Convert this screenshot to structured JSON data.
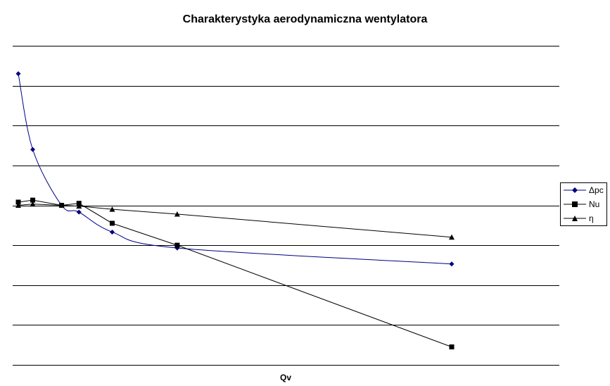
{
  "chart_data": {
    "type": "line",
    "title": "Charakterystyka aerodynamiczna wentylatora",
    "xlabel": "Qv",
    "ylabel": "",
    "ylim": [
      0,
      8
    ],
    "grid": true,
    "legend_position": "right",
    "x": [
      1,
      2,
      4,
      5.2,
      7.5,
      12,
      31
    ],
    "series": [
      {
        "name": "Δpc",
        "color": "#000080",
        "marker": "diamond",
        "smooth": true,
        "values": [
          7.3,
          5.4,
          4.0,
          3.83,
          3.33,
          2.93,
          2.53
        ]
      },
      {
        "name": "Nu",
        "color": "#000000",
        "marker": "square",
        "smooth": false,
        "values": [
          4.08,
          4.13,
          4.0,
          4.05,
          3.55,
          3.0,
          0.45
        ]
      },
      {
        "name": "η",
        "color": "#000000",
        "marker": "triangle",
        "smooth": false,
        "values": [
          4.0,
          4.03,
          4.0,
          3.98,
          3.9,
          3.78,
          3.2
        ]
      }
    ]
  }
}
